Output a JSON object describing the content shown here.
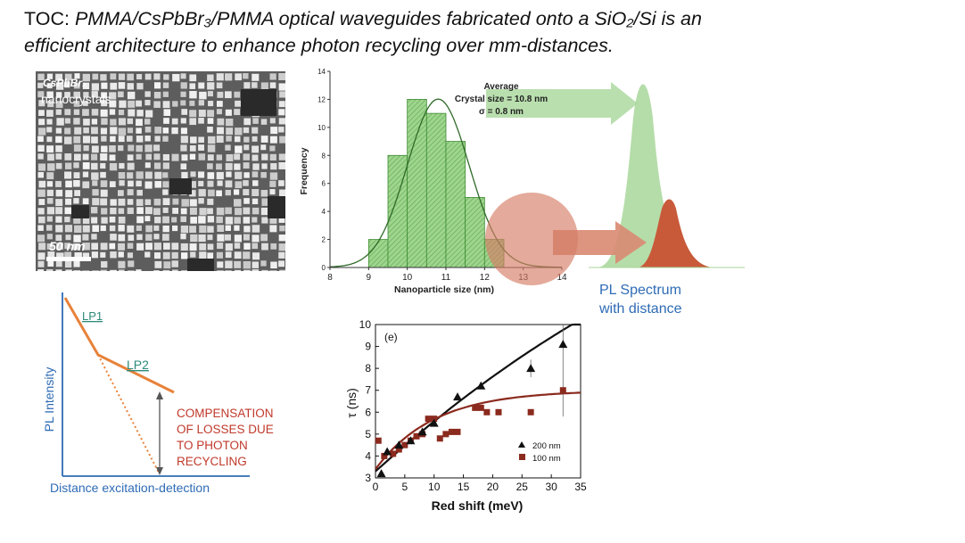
{
  "title": {
    "lead": "TOC: ",
    "line1_italic": "PMMA/CsPbBr₃/PMMA optical waveguides fabricated onto a SiO₂/Si is an",
    "line2_italic": "efficient architecture to enhance photon recycling over mm-distances."
  },
  "tem": {
    "label_line1": "CsPbBr₃",
    "label_line2": "nanocrystals",
    "scale_bar": "50 nm"
  },
  "histogram": {
    "annotation": [
      "Average",
      "Crystal size = 10.8 nm",
      "σ = 0.8 nm"
    ],
    "xlabel": "Nanoparticle size (nm)",
    "ylabel": "Frequency"
  },
  "pl_spectrum": {
    "caption_line1": "PL Spectrum",
    "caption_line2": "with distance"
  },
  "schematic": {
    "ylabel": "PL Intensity",
    "xlabel": "Distance excitation-detection",
    "lp1": "LP1",
    "lp2": "LP2",
    "compensation": [
      "COMPENSATION",
      "OF LOSSES DUE",
      "TO PHOTON",
      "RECYCLING"
    ]
  },
  "decay": {
    "panel_label": "(e)",
    "xlabel": "Red shift (meV)",
    "ylabel": "τ (ns)",
    "legend": [
      "200 nm",
      "100 nm"
    ]
  },
  "colors": {
    "histogram_green": "#7cc46a",
    "pl_green": "#a8d79a",
    "pl_orange": "#c85a3a",
    "lp_orange": "#e8823a",
    "caption_blue": "#2e6bb5",
    "compensation_red": "#c0392b",
    "decay_dark": "#111111",
    "decay_red": "#8b2a1e"
  },
  "chart_data": [
    {
      "type": "bar",
      "title": "Average",
      "xlabel": "Nanoparticle size (nm)",
      "ylabel": "Frequency",
      "bin_edges": [
        9,
        9.5,
        10,
        10.5,
        11,
        11.5,
        12,
        12.5,
        13
      ],
      "values": [
        2,
        8,
        12,
        11,
        9,
        5,
        2,
        0
      ],
      "xlim": [
        8,
        14
      ],
      "ylim": [
        0,
        14
      ],
      "xticks": [
        8,
        9,
        10,
        11,
        12,
        13,
        14
      ],
      "yticks": [
        0,
        2,
        4,
        6,
        8,
        10,
        12,
        14
      ],
      "fit": {
        "type": "gaussian",
        "mean": 10.8,
        "sigma": 0.8
      },
      "annotations": [
        "Crystal size = 10.8 nm",
        "σ = 0.8 nm"
      ]
    },
    {
      "type": "scatter",
      "xlabel": "Red shift (meV)",
      "ylabel": "τ (ns)",
      "xlim": [
        0,
        35
      ],
      "ylim": [
        3,
        10
      ],
      "xticks": [
        0,
        5,
        10,
        15,
        20,
        25,
        30,
        35
      ],
      "yticks": [
        3,
        4,
        5,
        6,
        7,
        8,
        9,
        10
      ],
      "series": [
        {
          "name": "200 nm",
          "x": [
            1,
            2,
            4,
            6,
            8,
            10,
            14,
            18,
            26.5,
            32
          ],
          "y": [
            3.2,
            4.2,
            4.5,
            4.7,
            5.1,
            5.5,
            6.7,
            7.2,
            8.0,
            9.1
          ]
        },
        {
          "name": "100 nm",
          "x": [
            0.5,
            1.5,
            3,
            4,
            5,
            6,
            7,
            8,
            9,
            10,
            11,
            12,
            13,
            14,
            17,
            18,
            19,
            21,
            26.5,
            32
          ],
          "y": [
            4.7,
            4.0,
            4.1,
            4.3,
            4.5,
            4.7,
            4.9,
            5.0,
            5.7,
            5.7,
            4.8,
            5.0,
            5.1,
            5.1,
            6.2,
            6.2,
            6.0,
            6.0,
            6.0,
            7.0
          ]
        }
      ],
      "legend_position": "bottom-right"
    }
  ]
}
